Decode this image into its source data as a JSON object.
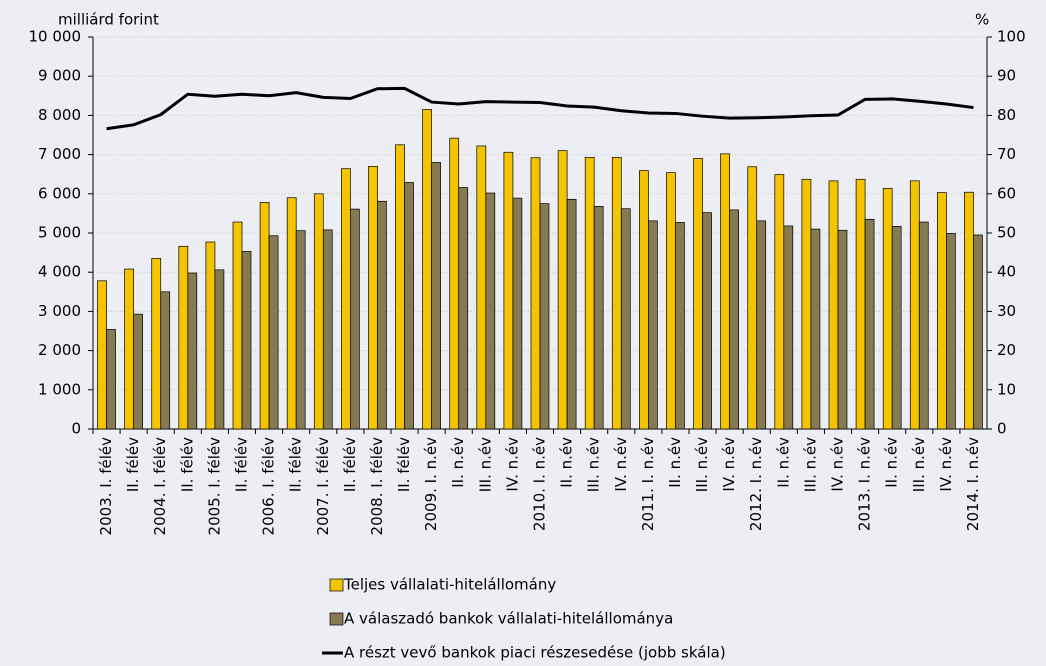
{
  "chart_data": {
    "type": "bar",
    "y_label": "milliárd forint",
    "y2_label": "%",
    "categories": [
      "2003. I. félév",
      "II. félév",
      "2004. I. félév",
      "II. félév",
      "2005. I. félév",
      "II. félév",
      "2006. I. félév",
      "II. félév",
      "2007. I. félév",
      "II. félév",
      "2008. I. félév",
      "II. félév",
      "2009. I. n.év",
      "II. n.év",
      "III. n.év",
      "IV. n.év",
      "2010. I. n.év",
      "II. n.év",
      "III. n.év",
      "IV. n.év",
      "2011. I. n.év",
      "II. n.év",
      "III. n.év",
      "IV. n.év",
      "2012. I. n.év",
      "II. n.év",
      "III. n.év",
      "IV. n.év",
      "2013. I. n.év",
      "II. n.év",
      "III. n.év",
      "IV. n.év",
      "2014. I. n.év"
    ],
    "series": [
      {
        "name": "Teljes vállalati-hitelállomány",
        "type": "bar",
        "color": "#f5c400",
        "values": [
          3780,
          4080,
          4350,
          4660,
          4770,
          5280,
          5780,
          5900,
          6000,
          6640,
          6700,
          7250,
          8150,
          7420,
          7220,
          7060,
          6920,
          7100,
          6930,
          6930,
          6590,
          6540,
          6900,
          7020,
          6690,
          6490,
          6370,
          6330,
          6370,
          6140,
          6330,
          6030,
          6040
        ]
      },
      {
        "name": "A válaszadó bankok vállalati-hitelállománya",
        "type": "bar",
        "color": "#857a52",
        "values": [
          2540,
          2930,
          3500,
          3980,
          4060,
          4530,
          4930,
          5060,
          5080,
          5610,
          5810,
          6290,
          6800,
          6160,
          6020,
          5890,
          5750,
          5860,
          5680,
          5620,
          5310,
          5270,
          5520,
          5590,
          5310,
          5180,
          5100,
          5070,
          5350,
          5170,
          5280,
          4990,
          4950
        ]
      },
      {
        "name": "A részt vevő bankok piaci részesedése (jobb skála)",
        "type": "line",
        "color": "#000000",
        "axis": "y2",
        "values": [
          76.6,
          77.6,
          80.2,
          85.4,
          84.9,
          85.4,
          85.0,
          85.8,
          84.6,
          84.3,
          86.8,
          86.9,
          83.4,
          82.9,
          83.5,
          83.4,
          83.3,
          82.4,
          82.1,
          81.2,
          80.6,
          80.5,
          79.8,
          79.3,
          79.4,
          79.6,
          79.9,
          80.1,
          84.1,
          84.2,
          83.6,
          82.9,
          82.0
        ]
      }
    ],
    "ylim": [
      0,
      10000
    ],
    "yticks": [
      0,
      {
        "value": 1000,
        "label": "1 000"
      },
      {
        "value": 2000,
        "label": "2 000"
      },
      {
        "value": 3000,
        "label": "3 000"
      },
      {
        "value": 4000,
        "label": "4 000"
      },
      {
        "value": 5000,
        "label": "5 000"
      },
      {
        "value": 6000,
        "label": "6 000"
      },
      {
        "value": 7000,
        "label": "7 000"
      },
      {
        "value": 8000,
        "label": "8 000"
      },
      {
        "value": 9000,
        "label": "9 000"
      },
      {
        "value": 10000,
        "label": "10 000"
      }
    ],
    "y2lim": [
      0,
      100
    ],
    "y2ticks": [
      0,
      10,
      20,
      30,
      40,
      50,
      60,
      70,
      80,
      90,
      100
    ],
    "grid": true
  }
}
